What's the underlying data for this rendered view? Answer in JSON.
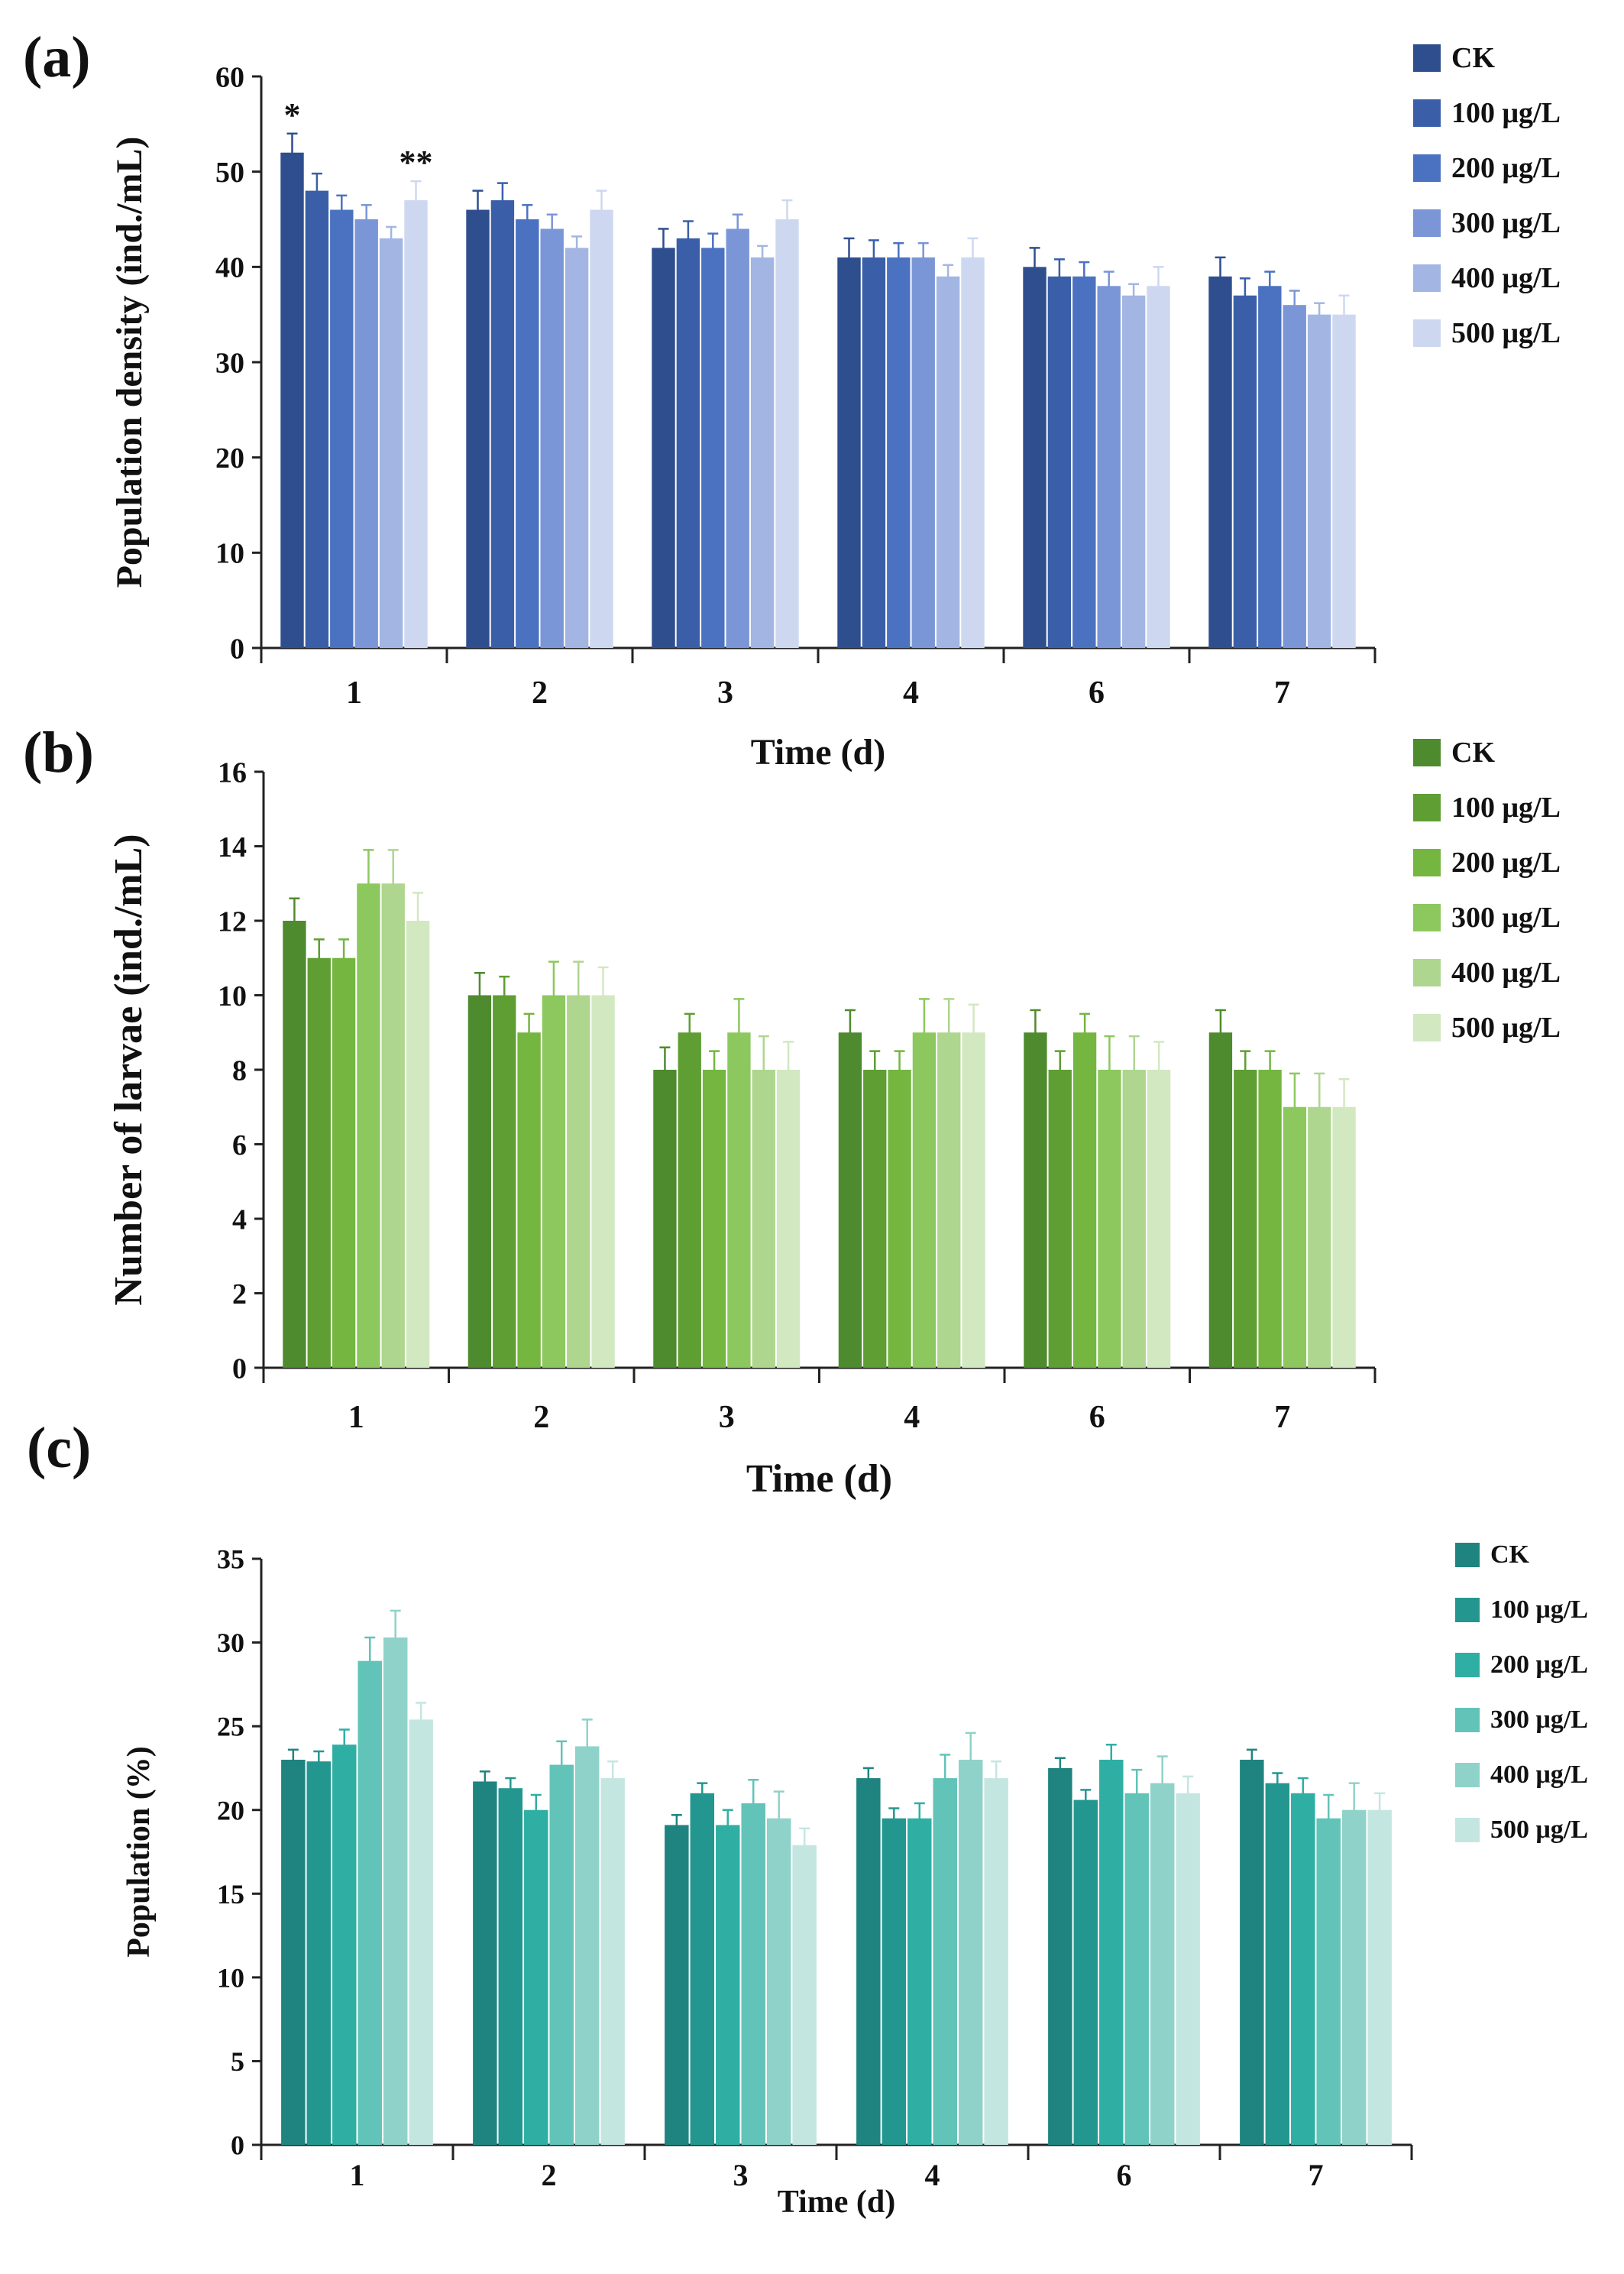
{
  "figure": {
    "panels": [
      {
        "label": "(a)"
      },
      {
        "label": "(b)"
      },
      {
        "label": "(c)"
      }
    ]
  },
  "chart_data": [
    {
      "type": "bar",
      "title": "",
      "panel_label": "(a)",
      "xlabel": "Time (d)",
      "ylabel": "Population density (ind./mL)",
      "categories": [
        "1",
        "2",
        "3",
        "4",
        "6",
        "7"
      ],
      "ylim": [
        0,
        60
      ],
      "yticks": [
        0,
        10,
        20,
        30,
        40,
        50,
        60
      ],
      "legend_position": "top-right",
      "series": [
        {
          "name": "CK",
          "color": "#2E4E8E",
          "values": [
            52,
            46,
            42,
            41,
            40,
            39
          ],
          "errors": [
            2,
            2,
            2,
            2,
            2,
            2
          ]
        },
        {
          "name": "100 μg/L",
          "color": "#3A5FA8",
          "values": [
            48,
            47,
            43,
            41,
            39,
            37
          ],
          "errors": [
            1.8,
            1.8,
            1.8,
            1.8,
            1.8,
            1.8
          ]
        },
        {
          "name": "200 μg/L",
          "color": "#4A72C0",
          "values": [
            46,
            45,
            42,
            41,
            39,
            38
          ],
          "errors": [
            1.5,
            1.5,
            1.5,
            1.5,
            1.5,
            1.5
          ]
        },
        {
          "name": "300 μg/L",
          "color": "#7A96D6",
          "values": [
            45,
            44,
            44,
            41,
            38,
            36
          ],
          "errors": [
            1.5,
            1.5,
            1.5,
            1.5,
            1.5,
            1.5
          ]
        },
        {
          "name": "400 μg/L",
          "color": "#A3B6E3",
          "values": [
            43,
            42,
            41,
            39,
            37,
            35
          ],
          "errors": [
            1.2,
            1.2,
            1.2,
            1.2,
            1.2,
            1.2
          ]
        },
        {
          "name": "500 μg/L",
          "color": "#CDD8F0",
          "values": [
            47,
            46,
            45,
            41,
            38,
            35
          ],
          "errors": [
            2,
            2,
            2,
            2,
            2,
            2
          ]
        }
      ],
      "annotations": [
        {
          "text": "*",
          "category": "1",
          "series": "CK"
        },
        {
          "text": "**",
          "category": "1",
          "series": "500 μg/L"
        }
      ]
    },
    {
      "type": "bar",
      "title": "",
      "panel_label": "(b)",
      "xlabel": "Time (d)",
      "ylabel": "Number of larvae (ind./mL)",
      "categories": [
        "1",
        "2",
        "3",
        "4",
        "6",
        "7"
      ],
      "ylim": [
        0,
        16
      ],
      "yticks": [
        0,
        2,
        4,
        6,
        8,
        10,
        12,
        14,
        16
      ],
      "legend_position": "top-right",
      "series": [
        {
          "name": "CK",
          "color": "#4E8A2E",
          "values": [
            12,
            10,
            8,
            9,
            9,
            9
          ],
          "errors": [
            0.6,
            0.6,
            0.6,
            0.6,
            0.6,
            0.6
          ]
        },
        {
          "name": "100 μg/L",
          "color": "#5F9E33",
          "values": [
            11,
            10,
            9,
            8,
            8,
            8
          ],
          "errors": [
            0.5,
            0.5,
            0.5,
            0.5,
            0.5,
            0.5
          ]
        },
        {
          "name": "200 μg/L",
          "color": "#74B640",
          "values": [
            11,
            9,
            8,
            8,
            9,
            8
          ],
          "errors": [
            0.5,
            0.5,
            0.5,
            0.5,
            0.5,
            0.5
          ]
        },
        {
          "name": "300 μg/L",
          "color": "#8CC85E",
          "values": [
            13,
            10,
            9,
            9,
            8,
            7
          ],
          "errors": [
            0.9,
            0.9,
            0.9,
            0.9,
            0.9,
            0.9
          ]
        },
        {
          "name": "400 μg/L",
          "color": "#AED68F",
          "values": [
            13,
            10,
            8,
            9,
            8,
            7
          ],
          "errors": [
            0.9,
            0.9,
            0.9,
            0.9,
            0.9,
            0.9
          ]
        },
        {
          "name": "500 μg/L",
          "color": "#D2E8C1",
          "values": [
            12,
            10,
            8,
            9,
            8,
            7
          ],
          "errors": [
            0.75,
            0.75,
            0.75,
            0.75,
            0.75,
            0.75
          ]
        }
      ]
    },
    {
      "type": "bar",
      "title": "",
      "panel_label": "(c)",
      "xlabel": "Time (d)",
      "ylabel": "Population  (%)",
      "categories": [
        "1",
        "2",
        "3",
        "4",
        "6",
        "7"
      ],
      "ylim": [
        0,
        35
      ],
      "yticks": [
        0,
        5,
        10,
        15,
        20,
        25,
        30,
        35
      ],
      "legend_position": "top-right",
      "series": [
        {
          "name": "CK",
          "color": "#1F8480",
          "values": [
            23,
            21.7,
            19.1,
            21.9,
            22.5,
            23
          ],
          "errors": [
            0.6,
            0.6,
            0.6,
            0.6,
            0.6,
            0.6
          ]
        },
        {
          "name": "100 μg/L",
          "color": "#23978F",
          "values": [
            22.9,
            21.3,
            21,
            19.5,
            20.6,
            21.6
          ],
          "errors": [
            0.6,
            0.6,
            0.6,
            0.6,
            0.6,
            0.6
          ]
        },
        {
          "name": "200 μg/L",
          "color": "#2FAFA4",
          "values": [
            23.9,
            20,
            19.1,
            19.5,
            23,
            21
          ],
          "errors": [
            0.9,
            0.9,
            0.9,
            0.9,
            0.9,
            0.9
          ]
        },
        {
          "name": "300 μg/L",
          "color": "#62C3B8",
          "values": [
            28.9,
            22.7,
            20.4,
            21.9,
            21,
            19.5
          ],
          "errors": [
            1.4,
            1.4,
            1.4,
            1.4,
            1.4,
            1.4
          ]
        },
        {
          "name": "400 μg/L",
          "color": "#8FD2C9",
          "values": [
            30.3,
            23.8,
            19.5,
            23,
            21.6,
            20
          ],
          "errors": [
            1.6,
            1.6,
            1.6,
            1.6,
            1.6,
            1.6
          ]
        },
        {
          "name": "500 μg/L",
          "color": "#C4E6E1",
          "values": [
            25.4,
            21.9,
            17.9,
            21.9,
            21,
            20
          ],
          "errors": [
            1,
            1,
            1,
            1,
            1,
            1
          ]
        }
      ]
    }
  ]
}
